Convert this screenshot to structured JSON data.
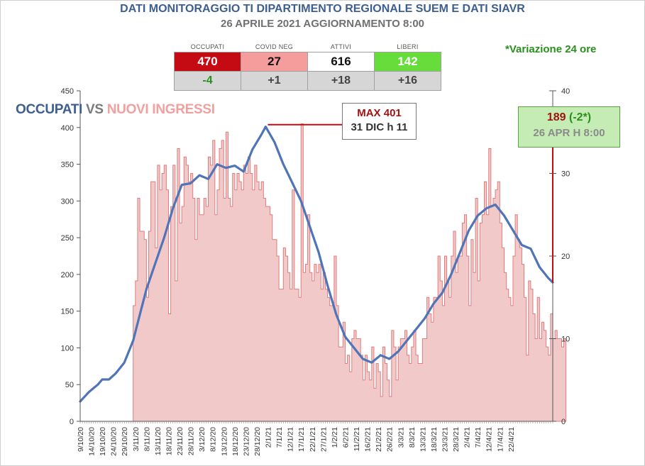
{
  "header": {
    "title": "DATI MONITORAGGIO TI DIPARTIMENTO REGIONALE SUEM E DATI SIAVR",
    "subtitle": "26 APRILE 2021 AGGIORNAMENTO 8:00",
    "variation_note": "*Variazione 24 ore"
  },
  "stats": [
    {
      "label": "OCCUPATI",
      "value": "470",
      "delta": "-4"
    },
    {
      "label": "COVID NEG",
      "value": "27",
      "delta": "+1"
    },
    {
      "label": "ATTIVI",
      "value": "616",
      "delta": "+18"
    },
    {
      "label": "LIBERI",
      "value": "142",
      "delta": "+16"
    }
  ],
  "legend": {
    "occupati": "OCCUPATI",
    "vs": "VS",
    "nuovi": "NUOVI INGRESSI"
  },
  "annotations": {
    "max_value": "MAX 401",
    "max_date": "31 DIC h 11",
    "current_value": "189",
    "current_delta": "(-2*)",
    "current_date": "26 APR H 8:00"
  },
  "colors": {
    "occupati_line": "#4f74b8",
    "nuovi_fill": "#f2c9c9",
    "nuovi_stroke": "#e07c7c",
    "max_marker": "#c40a12"
  },
  "chart_data": {
    "type": "line",
    "start_date": "2020-10-09",
    "end_date": "2021-04-26",
    "x_tick_labels": [
      "9/10/20",
      "14/10/20",
      "19/10/20",
      "24/10/20",
      "29/10/20",
      "3/11/20",
      "8/11/20",
      "13/11/20",
      "18/11/20",
      "23/11/20",
      "28/11/20",
      "3/12/20",
      "8/12/20",
      "13/12/20",
      "18/12/20",
      "23/12/20",
      "28/12/20",
      "2/1/21",
      "7/1/21",
      "12/1/21",
      "17/1/21",
      "22/1/21",
      "27/1/21",
      "1/2/21",
      "6/2/21",
      "11/2/21",
      "16/2/21",
      "21/2/21",
      "26/2/21",
      "3/3/21",
      "8/3/21",
      "13/3/21",
      "18/3/21",
      "23/3/21",
      "28/3/21",
      "2/4/21",
      "7/4/21",
      "12/4/21",
      "17/4/21",
      "22/4/21"
    ],
    "y_left": {
      "min": 0,
      "max": 450,
      "ticks": [
        0,
        50,
        100,
        150,
        200,
        250,
        300,
        350,
        400,
        450
      ]
    },
    "y_right": {
      "min": 0,
      "max": 40,
      "ticks": [
        0,
        10,
        20,
        30,
        40
      ]
    },
    "series": [
      {
        "name": "OCCUPATI",
        "axis": "left",
        "points": [
          [
            0,
            27
          ],
          [
            4,
            40
          ],
          [
            8,
            50
          ],
          [
            10,
            57
          ],
          [
            13,
            57
          ],
          [
            16,
            65
          ],
          [
            20,
            80
          ],
          [
            24,
            110
          ],
          [
            27,
            145
          ],
          [
            30,
            180
          ],
          [
            34,
            215
          ],
          [
            38,
            250
          ],
          [
            42,
            290
          ],
          [
            46,
            322
          ],
          [
            50,
            324
          ],
          [
            54,
            335
          ],
          [
            58,
            330
          ],
          [
            62,
            350
          ],
          [
            66,
            345
          ],
          [
            70,
            348
          ],
          [
            74,
            340
          ],
          [
            78,
            370
          ],
          [
            82,
            390
          ],
          [
            84,
            401
          ],
          [
            88,
            380
          ],
          [
            92,
            350
          ],
          [
            96,
            325
          ],
          [
            100,
            300
          ],
          [
            104,
            265
          ],
          [
            108,
            230
          ],
          [
            112,
            185
          ],
          [
            116,
            145
          ],
          [
            120,
            115
          ],
          [
            124,
            100
          ],
          [
            128,
            85
          ],
          [
            132,
            80
          ],
          [
            136,
            90
          ],
          [
            140,
            85
          ],
          [
            144,
            95
          ],
          [
            148,
            110
          ],
          [
            152,
            125
          ],
          [
            156,
            140
          ],
          [
            160,
            160
          ],
          [
            164,
            175
          ],
          [
            168,
            200
          ],
          [
            172,
            230
          ],
          [
            176,
            260
          ],
          [
            180,
            280
          ],
          [
            184,
            290
          ],
          [
            188,
            295
          ],
          [
            192,
            280
          ],
          [
            196,
            260
          ],
          [
            200,
            240
          ],
          [
            204,
            235
          ],
          [
            208,
            210
          ],
          [
            212,
            195
          ],
          [
            214,
            189
          ]
        ]
      },
      {
        "name": "NUOVI INGRESSI",
        "axis": "right",
        "values_from_day": 24,
        "values": [
          14,
          17,
          27,
          23,
          23,
          22,
          15,
          23,
          29,
          29,
          21,
          31,
          28,
          30,
          31,
          28,
          13,
          26,
          31,
          17,
          33,
          24,
          26,
          32,
          31,
          29,
          30,
          27,
          22,
          27,
          25,
          25,
          27,
          26,
          32,
          31,
          34,
          25,
          28,
          33,
          34,
          27,
          35,
          27,
          26,
          30,
          28,
          30,
          29,
          28,
          31,
          30,
          32,
          30,
          28,
          31,
          29,
          28,
          29,
          27,
          26,
          26,
          25,
          22,
          22,
          20,
          16,
          16,
          21,
          20,
          18,
          16,
          28,
          16,
          16,
          15,
          36,
          18,
          19,
          25,
          18,
          17,
          19,
          18,
          19,
          16,
          18,
          16,
          15,
          14,
          14,
          20,
          14,
          9,
          9,
          12,
          7,
          8,
          6,
          10,
          11,
          10,
          10,
          8,
          5,
          8,
          6,
          5,
          9,
          4,
          7,
          6,
          3,
          9,
          7,
          5,
          3,
          11,
          9,
          5,
          9,
          10,
          10,
          11,
          8,
          7,
          9,
          11,
          8,
          7,
          7,
          10,
          10,
          15,
          13,
          12,
          15,
          15,
          20,
          17,
          14,
          20,
          17,
          15,
          20,
          23,
          18,
          20,
          20,
          24,
          25,
          20,
          14,
          22,
          18,
          27,
          17,
          24,
          25,
          29,
          25,
          33,
          26,
          27,
          28,
          29,
          24,
          21,
          18,
          16,
          15,
          14,
          20,
          25,
          22,
          21,
          19,
          15,
          8,
          17,
          16,
          13,
          10,
          15,
          10,
          12,
          11,
          9,
          8,
          13,
          10,
          11,
          10,
          10,
          9,
          10
        ]
      }
    ]
  }
}
